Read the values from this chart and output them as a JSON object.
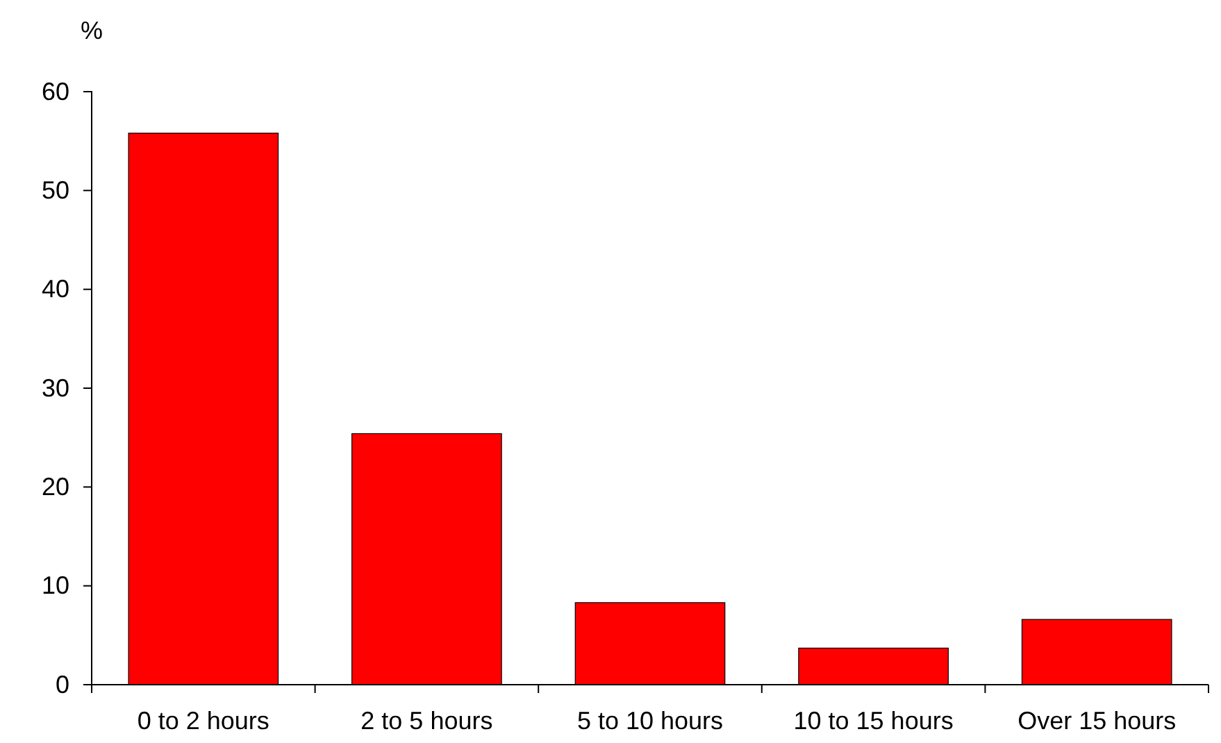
{
  "chart_data": {
    "type": "bar",
    "ylabel": "%",
    "categories": [
      "0 to 2 hours",
      "2 to 5 hours",
      "5 to 10 hours",
      "10 to 15 hours",
      "Over 15 hours"
    ],
    "values": [
      55.8,
      25.4,
      8.3,
      3.7,
      6.6
    ],
    "color": "#ff0000",
    "ylim": [
      0,
      60
    ],
    "yticks": [
      0,
      10,
      20,
      30,
      40,
      50,
      60
    ],
    "grid": false
  }
}
